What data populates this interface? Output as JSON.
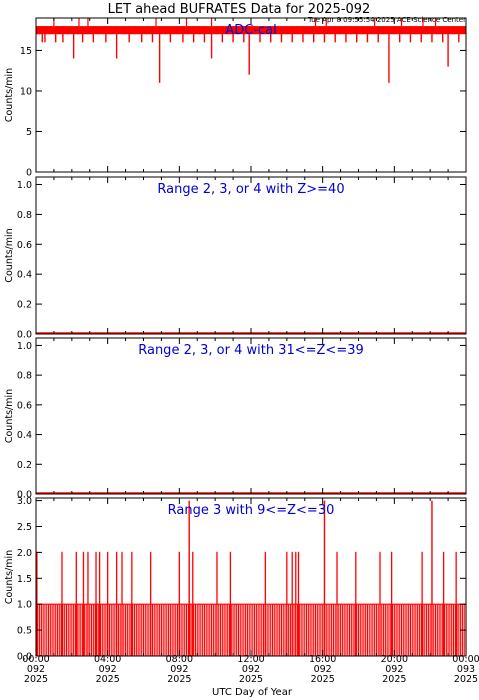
{
  "header": {
    "title": "LET ahead BUFRATES Data for 2025-092",
    "subtitle": "Tue Apr  8 09:55:54 2025 ACE Science Center"
  },
  "colors": {
    "data": "#ff0000",
    "panel_title": "#0000d0",
    "axes": "#000000"
  },
  "chart_data": [
    {
      "type": "bar",
      "title": "ADC-cal",
      "ylabel": "Counts/min",
      "ylim": [
        0,
        19
      ],
      "yticks": [
        "0",
        "5",
        "10",
        "15"
      ],
      "ytick_values": [
        0,
        5,
        10,
        15
      ],
      "x_range_hours": [
        0,
        24
      ],
      "baseline": 18,
      "lows": [
        {
          "t": 0.2,
          "v": 17
        },
        {
          "t": 0.35,
          "v": 16
        },
        {
          "t": 0.5,
          "v": 16
        },
        {
          "t": 0.8,
          "v": 17
        },
        {
          "t": 1.1,
          "v": 16
        },
        {
          "t": 1.3,
          "v": 17
        },
        {
          "t": 1.5,
          "v": 16
        },
        {
          "t": 1.8,
          "v": 17
        },
        {
          "t": 2.1,
          "v": 14
        },
        {
          "t": 2.3,
          "v": 17
        },
        {
          "t": 2.6,
          "v": 16
        },
        {
          "t": 2.9,
          "v": 17
        },
        {
          "t": 3.2,
          "v": 16
        },
        {
          "t": 3.5,
          "v": 17
        },
        {
          "t": 3.9,
          "v": 16
        },
        {
          "t": 4.2,
          "v": 17
        },
        {
          "t": 4.5,
          "v": 14
        },
        {
          "t": 4.9,
          "v": 17
        },
        {
          "t": 5.2,
          "v": 16
        },
        {
          "t": 5.5,
          "v": 17
        },
        {
          "t": 5.9,
          "v": 16
        },
        {
          "t": 6.2,
          "v": 17
        },
        {
          "t": 6.5,
          "v": 16
        },
        {
          "t": 6.9,
          "v": 11
        },
        {
          "t": 7.2,
          "v": 17
        },
        {
          "t": 7.5,
          "v": 16
        },
        {
          "t": 7.9,
          "v": 17
        },
        {
          "t": 8.2,
          "v": 16
        },
        {
          "t": 8.5,
          "v": 17
        },
        {
          "t": 8.8,
          "v": 16
        },
        {
          "t": 9.1,
          "v": 17
        },
        {
          "t": 9.4,
          "v": 16
        },
        {
          "t": 9.8,
          "v": 14
        },
        {
          "t": 10.1,
          "v": 17
        },
        {
          "t": 10.4,
          "v": 16
        },
        {
          "t": 10.7,
          "v": 17
        },
        {
          "t": 11.0,
          "v": 16
        },
        {
          "t": 11.3,
          "v": 17
        },
        {
          "t": 11.6,
          "v": 16
        },
        {
          "t": 11.9,
          "v": 12
        },
        {
          "t": 12.2,
          "v": 17
        },
        {
          "t": 12.5,
          "v": 16
        },
        {
          "t": 12.8,
          "v": 17
        },
        {
          "t": 13.1,
          "v": 16
        },
        {
          "t": 13.4,
          "v": 17
        },
        {
          "t": 13.7,
          "v": 16
        },
        {
          "t": 14.0,
          "v": 17
        },
        {
          "t": 14.3,
          "v": 16
        },
        {
          "t": 14.6,
          "v": 17
        },
        {
          "t": 14.9,
          "v": 16
        },
        {
          "t": 15.2,
          "v": 17
        },
        {
          "t": 15.5,
          "v": 16
        },
        {
          "t": 15.8,
          "v": 17
        },
        {
          "t": 16.1,
          "v": 16
        },
        {
          "t": 16.4,
          "v": 17
        },
        {
          "t": 16.7,
          "v": 16
        },
        {
          "t": 17.0,
          "v": 17
        },
        {
          "t": 17.3,
          "v": 16
        },
        {
          "t": 17.6,
          "v": 17
        },
        {
          "t": 17.9,
          "v": 16
        },
        {
          "t": 18.2,
          "v": 17
        },
        {
          "t": 18.5,
          "v": 16
        },
        {
          "t": 18.8,
          "v": 17
        },
        {
          "t": 19.1,
          "v": 16
        },
        {
          "t": 19.4,
          "v": 17
        },
        {
          "t": 19.7,
          "v": 11
        },
        {
          "t": 20.0,
          "v": 17
        },
        {
          "t": 20.3,
          "v": 16
        },
        {
          "t": 20.6,
          "v": 17
        },
        {
          "t": 20.9,
          "v": 16
        },
        {
          "t": 21.2,
          "v": 17
        },
        {
          "t": 21.5,
          "v": 16
        },
        {
          "t": 21.8,
          "v": 17
        },
        {
          "t": 22.1,
          "v": 16
        },
        {
          "t": 22.4,
          "v": 17
        },
        {
          "t": 22.7,
          "v": 16
        },
        {
          "t": 23.0,
          "v": 13
        },
        {
          "t": 23.3,
          "v": 17
        },
        {
          "t": 23.6,
          "v": 16
        }
      ],
      "highs": [
        {
          "t": 1.0,
          "v": 19
        },
        {
          "t": 2.4,
          "v": 19
        },
        {
          "t": 2.9,
          "v": 19
        },
        {
          "t": 6.7,
          "v": 19
        },
        {
          "t": 8.4,
          "v": 19
        },
        {
          "t": 9.8,
          "v": 19
        },
        {
          "t": 15.6,
          "v": 19
        },
        {
          "t": 16.2,
          "v": 19
        },
        {
          "t": 18.9,
          "v": 19
        },
        {
          "t": 20.4,
          "v": 19
        },
        {
          "t": 21.6,
          "v": 19
        },
        {
          "t": 22.3,
          "v": 19
        }
      ]
    },
    {
      "type": "line",
      "title": "Range 2, 3, or 4 with Z>=40",
      "ylabel": "Counts/min",
      "ylim": [
        0,
        1.05
      ],
      "yticks": [
        "0.0",
        "0.2",
        "0.4",
        "0.6",
        "0.8",
        "1.0"
      ],
      "ytick_values": [
        0,
        0.2,
        0.4,
        0.6,
        0.8,
        1.0
      ],
      "x_range_hours": [
        0,
        24
      ],
      "series": [
        {
          "x": [
            0,
            24
          ],
          "values": [
            0,
            0
          ]
        }
      ]
    },
    {
      "type": "line",
      "title": "Range 2, 3, or 4 with 31<=Z<=39",
      "ylabel": "Counts/min",
      "ylim": [
        0,
        1.05
      ],
      "yticks": [
        "0.0",
        "0.2",
        "0.4",
        "0.6",
        "0.8",
        "1.0"
      ],
      "ytick_values": [
        0,
        0.2,
        0.4,
        0.6,
        0.8,
        1.0
      ],
      "x_range_hours": [
        0,
        24
      ],
      "series": [
        {
          "x": [
            0,
            24
          ],
          "values": [
            0,
            0
          ]
        }
      ]
    },
    {
      "type": "bar",
      "title": "Range 3 with 9<=Z<=30",
      "ylabel": "Counts/min",
      "ylim": [
        0,
        3.05
      ],
      "yticks": [
        "0.0",
        "0.5",
        "1.0",
        "1.5",
        "2.0",
        "2.5",
        "3.0"
      ],
      "ytick_values": [
        0,
        0.5,
        1.0,
        1.5,
        2.0,
        2.5,
        3.0
      ],
      "x_range_hours": [
        0,
        24
      ],
      "ones_spacing_hours": 0.1,
      "twos": [
        0.05,
        1.45,
        2.25,
        2.65,
        2.9,
        3.35,
        3.55,
        4.0,
        4.5,
        4.8,
        5.35,
        6.4,
        8.0,
        8.75,
        10.1,
        10.85,
        12.8,
        14.0,
        14.3,
        14.5,
        14.65,
        16.8,
        17.85,
        19.2,
        19.85,
        21.55,
        22.75,
        23.45
      ],
      "threes": [
        8.55,
        16.1,
        22.1
      ]
    }
  ],
  "xaxis": {
    "label": "UTC Day of Year",
    "ticks": [
      {
        "h": 0,
        "time": "00:00",
        "day": "092",
        "year": "2025"
      },
      {
        "h": 4,
        "time": "04:00",
        "day": "092",
        "year": "2025"
      },
      {
        "h": 8,
        "time": "08:00",
        "day": "092",
        "year": "2025"
      },
      {
        "h": 12,
        "time": "12:00",
        "day": "092",
        "year": "2025"
      },
      {
        "h": 16,
        "time": "16:00",
        "day": "092",
        "year": "2025"
      },
      {
        "h": 20,
        "time": "20:00",
        "day": "092",
        "year": "2025"
      },
      {
        "h": 24,
        "time": "00:00",
        "day": "093",
        "year": "2025"
      }
    ]
  }
}
